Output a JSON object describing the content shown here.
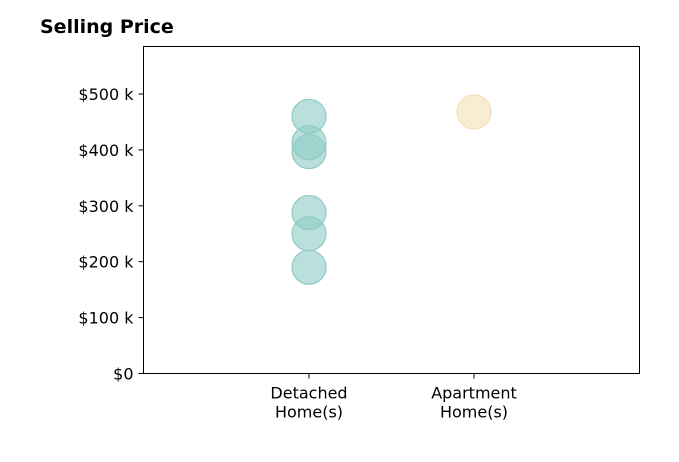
{
  "title": "Selling Price",
  "chart_data": {
    "type": "scatter",
    "title": "Selling Price",
    "xlabel": "",
    "ylabel": "",
    "categories": [
      [
        "Detached",
        "Home(s)"
      ],
      [
        "Apartment",
        "Home(s)"
      ]
    ],
    "y_ticks": [
      {
        "value": 0,
        "label": "$0"
      },
      {
        "value": 100000,
        "label": "$100 k"
      },
      {
        "value": 200000,
        "label": "$200 k"
      },
      {
        "value": 300000,
        "label": "$300 k"
      },
      {
        "value": 400000,
        "label": "$400 k"
      },
      {
        "value": 500000,
        "label": "$500 k"
      }
    ],
    "ylim": [
      0,
      585000
    ],
    "grid": false,
    "series": [
      {
        "category": 0,
        "color": "#8ecbc4",
        "values": [
          190000,
          250000,
          288000,
          397000,
          413000,
          460000
        ]
      },
      {
        "category": 1,
        "color": "#f4dfb4",
        "values": [
          468000
        ]
      }
    ]
  }
}
